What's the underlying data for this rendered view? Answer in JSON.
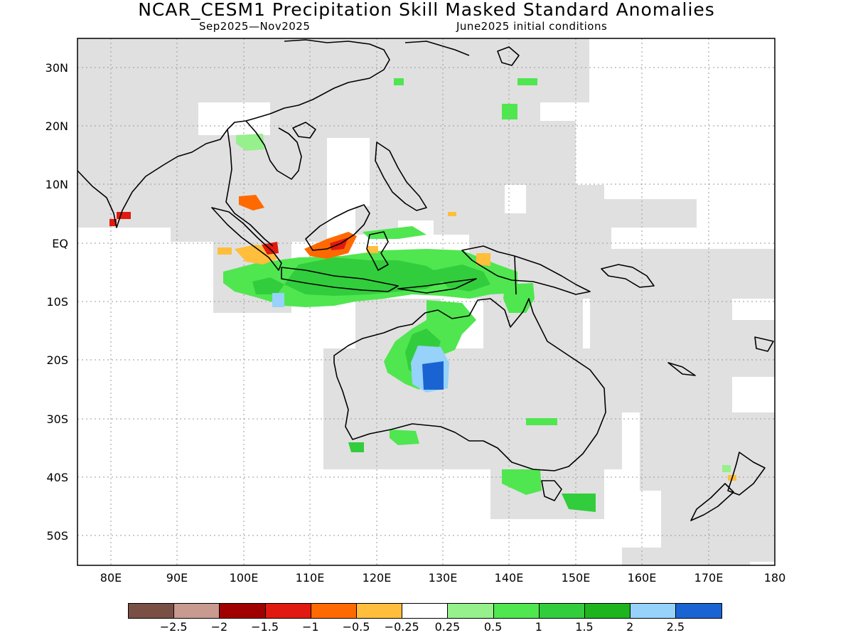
{
  "title": "NCAR_CESM1 Precipitation Skill Masked Standard Anomalies",
  "season_label": "Sep2025—Nov2025",
  "init_label": "June2025 initial conditions",
  "lat_ticks": [
    "30N",
    "20N",
    "10N",
    "EQ",
    "10S",
    "20S",
    "30S",
    "40S",
    "50S"
  ],
  "lon_ticks": [
    "80E",
    "90E",
    "100E",
    "110E",
    "120E",
    "130E",
    "140E",
    "150E",
    "160E",
    "170E",
    "180"
  ],
  "colorbar": {
    "colors": [
      "#7a5045",
      "#c89a90",
      "#a00000",
      "#e01a10",
      "#ff6a00",
      "#ffbe3c",
      "#ffffff",
      "#96f08c",
      "#50e650",
      "#32cd3c",
      "#1eb41e",
      "#96d2fa",
      "#1964d2"
    ],
    "labels": [
      "−2.5",
      "−2",
      "−1.5",
      "−1",
      "−0.5",
      "−0.25",
      "0.25",
      "0.5",
      "1",
      "1.5",
      "2",
      "2.5"
    ]
  },
  "map": {
    "lon_range": [
      75,
      180
    ],
    "lat_range": [
      -55,
      35
    ],
    "mask_color": "#e0e0e0",
    "coast_color": "#000000",
    "grid_style": "dotted"
  }
}
